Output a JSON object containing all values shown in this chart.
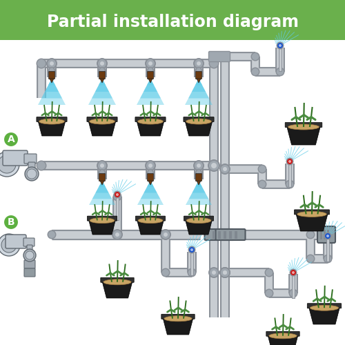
{
  "title": "Partial installation diagram",
  "title_bg": "#6ab04c",
  "title_fg": "#ffffff",
  "bg": "#ffffff",
  "pipe_fill": "#c8cdd2",
  "pipe_edge": "#8a9098",
  "pipe_lw": 7,
  "conn_fill": "#a0a8b0",
  "conn_edge": "#606870",
  "pot_dark": "#1a1a1a",
  "pot_mid": "#2a2a2a",
  "soil": "#c8a464",
  "plant_stem": "#2d6e1e",
  "plant_leaf": "#4a8c3f",
  "spray_blue": "#60cce8",
  "emitter_brown": "#6b3a10",
  "emitter_blue": "#1a55cc",
  "emitter_red": "#cc1a1a",
  "faucet_body": "#c0c8d0",
  "faucet_edge": "#606870",
  "label_green": "#5db040",
  "manifold_fill": "#909aa0",
  "manifold_edge": "#505860"
}
